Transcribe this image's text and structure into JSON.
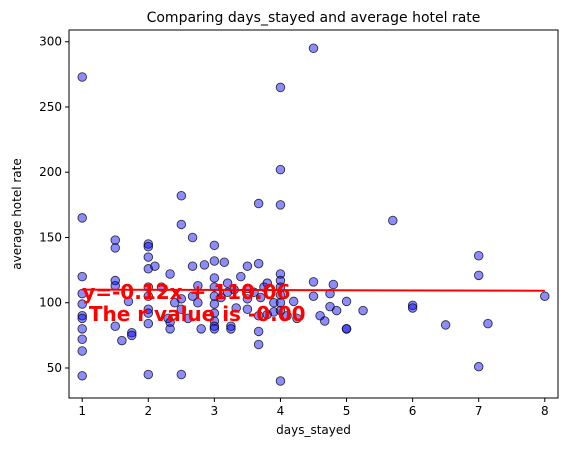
{
  "chart_data": {
    "type": "scatter",
    "title": "Comparing days_stayed and  average hotel rate",
    "xlabel": "days_stayed",
    "ylabel": "average hotel rate",
    "xlim": [
      0.8,
      8.2
    ],
    "ylim": [
      27,
      309
    ],
    "xticks": [
      1,
      2,
      3,
      4,
      5,
      6,
      7,
      8
    ],
    "yticks": [
      50,
      100,
      150,
      200,
      250,
      300
    ],
    "grid": false,
    "colors": {
      "points": "#0000ff",
      "line": "#ff0000",
      "annotation": "#ff0000"
    },
    "points": [
      [
        1,
        273
      ],
      [
        1,
        165
      ],
      [
        1,
        120
      ],
      [
        1,
        107
      ],
      [
        1,
        99
      ],
      [
        1,
        90
      ],
      [
        1,
        88
      ],
      [
        1,
        80
      ],
      [
        1,
        72
      ],
      [
        1,
        63
      ],
      [
        1,
        44
      ],
      [
        1.5,
        148
      ],
      [
        1.5,
        142
      ],
      [
        1.5,
        117
      ],
      [
        1.5,
        113
      ],
      [
        1.5,
        82
      ],
      [
        1.6,
        71
      ],
      [
        1.7,
        101
      ],
      [
        1.75,
        77
      ],
      [
        1.75,
        75
      ],
      [
        2,
        145
      ],
      [
        2,
        143
      ],
      [
        2,
        135
      ],
      [
        2,
        126
      ],
      [
        2,
        112
      ],
      [
        2,
        105
      ],
      [
        2,
        95
      ],
      [
        2,
        92
      ],
      [
        2,
        84
      ],
      [
        2,
        45
      ],
      [
        2.1,
        128
      ],
      [
        2.2,
        112
      ],
      [
        2.3,
        88
      ],
      [
        2.33,
        122
      ],
      [
        2.33,
        85
      ],
      [
        2.33,
        80
      ],
      [
        2.4,
        100
      ],
      [
        2.5,
        182
      ],
      [
        2.5,
        160
      ],
      [
        2.5,
        103
      ],
      [
        2.5,
        95
      ],
      [
        2.5,
        45
      ],
      [
        2.6,
        88
      ],
      [
        2.67,
        150
      ],
      [
        2.67,
        105
      ],
      [
        2.67,
        128
      ],
      [
        2.75,
        100
      ],
      [
        2.75,
        113
      ],
      [
        2.8,
        80
      ],
      [
        2.85,
        129
      ],
      [
        3,
        144
      ],
      [
        3,
        132
      ],
      [
        3,
        119
      ],
      [
        3,
        112
      ],
      [
        3,
        105
      ],
      [
        3,
        99
      ],
      [
        3,
        92
      ],
      [
        3,
        86
      ],
      [
        3,
        82
      ],
      [
        3,
        80
      ],
      [
        3.1,
        104
      ],
      [
        3.15,
        131
      ],
      [
        3.2,
        115
      ],
      [
        3.2,
        108
      ],
      [
        3.25,
        82
      ],
      [
        3.25,
        80
      ],
      [
        3.3,
        110
      ],
      [
        3.33,
        96
      ],
      [
        3.4,
        120
      ],
      [
        3.5,
        128
      ],
      [
        3.5,
        111
      ],
      [
        3.5,
        103
      ],
      [
        3.5,
        95
      ],
      [
        3.6,
        108
      ],
      [
        3.67,
        176
      ],
      [
        3.67,
        130
      ],
      [
        3.67,
        90
      ],
      [
        3.67,
        78
      ],
      [
        3.67,
        68
      ],
      [
        3.7,
        104
      ],
      [
        3.75,
        112
      ],
      [
        3.8,
        91
      ],
      [
        3.8,
        115
      ],
      [
        3.9,
        100
      ],
      [
        3.9,
        93
      ],
      [
        4,
        265
      ],
      [
        4,
        202
      ],
      [
        4,
        175
      ],
      [
        4,
        122
      ],
      [
        4,
        117
      ],
      [
        4,
        112
      ],
      [
        4,
        106
      ],
      [
        4,
        100
      ],
      [
        4,
        94
      ],
      [
        4,
        40
      ],
      [
        4.1,
        90
      ],
      [
        4.2,
        101
      ],
      [
        4.25,
        88
      ],
      [
        4.5,
        295
      ],
      [
        4.5,
        116
      ],
      [
        4.5,
        105
      ],
      [
        4.6,
        90
      ],
      [
        4.67,
        86
      ],
      [
        4.75,
        107
      ],
      [
        4.75,
        97
      ],
      [
        4.8,
        114
      ],
      [
        4.85,
        94
      ],
      [
        5,
        101
      ],
      [
        5,
        80
      ],
      [
        5,
        80
      ],
      [
        5.25,
        94
      ],
      [
        5.7,
        163
      ],
      [
        6,
        98
      ],
      [
        6,
        96
      ],
      [
        6.5,
        83
      ],
      [
        7,
        136
      ],
      [
        7,
        121
      ],
      [
        7,
        51
      ],
      [
        7.14,
        84
      ],
      [
        8,
        105
      ]
    ],
    "regression": {
      "x": [
        1,
        8
      ],
      "y": [
        110.06,
        109.22
      ]
    },
    "annotation_lines": [
      "y=-0.12x + 110.06",
      "The r value is -0.00"
    ]
  }
}
